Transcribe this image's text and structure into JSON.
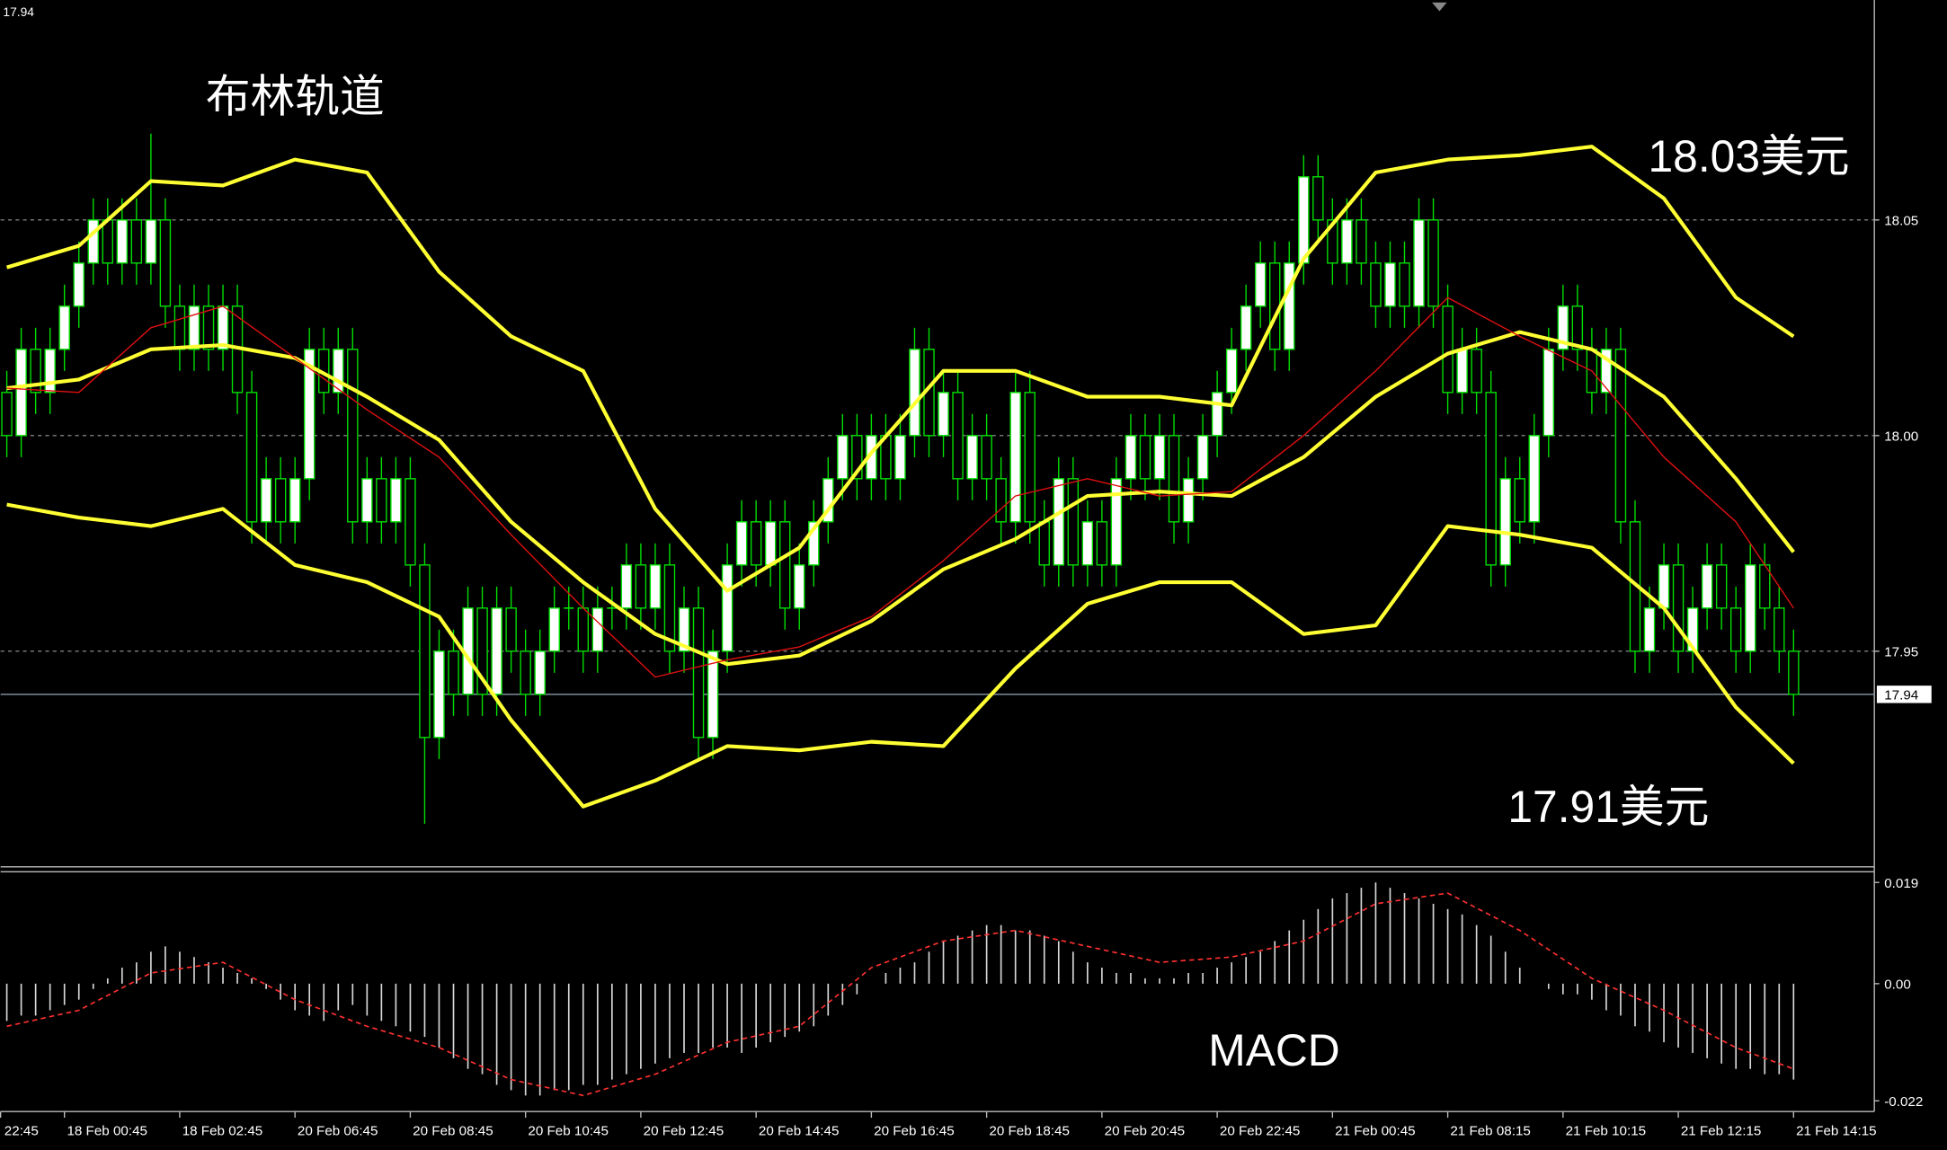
{
  "chart_data": {
    "type": "candlestick",
    "top_left_label": 17.94,
    "annotations": [
      "布林轨道",
      "18.03美元",
      "17.91美元"
    ],
    "time_labels": [
      "22:45",
      "18 Feb 00:45",
      "18 Feb 02:45",
      "20 Feb 06:45",
      "20 Feb 08:45",
      "20 Feb 10:45",
      "20 Feb 12:45",
      "20 Feb 14:45",
      "20 Feb 16:45",
      "20 Feb 18:45",
      "20 Feb 20:45",
      "20 Feb 22:45",
      "21 Feb 00:45",
      "21 Feb 08:15",
      "21 Feb 10:15",
      "21 Feb 12:15",
      "21 Feb 14:15"
    ],
    "ylim": [
      17.9,
      18.101
    ],
    "yticks": [
      18.05,
      {
        "value": 18,
        "label": "18.00"
      },
      17.95
    ],
    "grid": true,
    "current_price": 17.94,
    "candle_colors": {
      "up": "#ffffff",
      "down": "#000000",
      "outline": "#00e000"
    },
    "candles": {
      "open": [
        18.01,
        18.0,
        18.02,
        18.01,
        18.02,
        18.03,
        18.04,
        18.05,
        18.04,
        18.05,
        18.04,
        18.05,
        18.03,
        18.02,
        18.03,
        18.02,
        18.03,
        18.01,
        17.98,
        17.99,
        17.98,
        17.99,
        18.02,
        18.01,
        18.02,
        17.98,
        17.99,
        17.98,
        17.99,
        17.97,
        17.93,
        17.95,
        17.94,
        17.96,
        17.94,
        17.96,
        17.95,
        17.94,
        17.95,
        17.96,
        17.96,
        17.95,
        17.96,
        17.96,
        17.97,
        17.96,
        17.97,
        17.95,
        17.96,
        17.93,
        17.95,
        17.97,
        17.98,
        17.97,
        17.98,
        17.96,
        17.97,
        17.98,
        17.99,
        18.0,
        17.99,
        18.0,
        17.99,
        18.0,
        18.02,
        18.0,
        18.01,
        17.99,
        18.0,
        17.99,
        17.98,
        18.01,
        17.98,
        17.97,
        17.99,
        17.97,
        17.98,
        17.97,
        17.99,
        18.0,
        17.99,
        18.0,
        17.98,
        17.99,
        18.0,
        18.01,
        18.02,
        18.03,
        18.04,
        18.02,
        18.04,
        18.06,
        18.05,
        18.04,
        18.05,
        18.04,
        18.03,
        18.04,
        18.03,
        18.05,
        18.03,
        18.01,
        18.02,
        18.01,
        17.97,
        17.99,
        17.98,
        18.0,
        18.02,
        18.03,
        18.02,
        18.01,
        18.02,
        17.98,
        17.95,
        17.96,
        17.97,
        17.95,
        17.96,
        17.97,
        17.96,
        17.95,
        17.97,
        17.96,
        17.95
      ],
      "high": [
        18.015,
        18.025,
        18.025,
        18.025,
        18.035,
        18.045,
        18.055,
        18.055,
        18.055,
        18.055,
        18.07,
        18.055,
        18.035,
        18.035,
        18.035,
        18.035,
        18.035,
        18.015,
        17.995,
        17.995,
        17.995,
        18.025,
        18.025,
        18.025,
        18.025,
        17.995,
        17.995,
        17.995,
        17.995,
        17.975,
        17.955,
        17.955,
        17.965,
        17.965,
        17.965,
        17.965,
        17.955,
        17.955,
        17.965,
        17.965,
        17.965,
        17.965,
        17.965,
        17.975,
        17.975,
        17.975,
        17.975,
        17.965,
        17.965,
        17.955,
        17.975,
        17.985,
        17.985,
        17.985,
        17.985,
        17.975,
        17.985,
        17.995,
        18.005,
        18.005,
        18.005,
        18.005,
        18.005,
        18.025,
        18.025,
        18.015,
        18.015,
        18.005,
        18.005,
        17.995,
        18.015,
        18.015,
        17.985,
        17.995,
        17.995,
        17.985,
        17.985,
        17.995,
        18.005,
        18.005,
        18.005,
        18.005,
        17.995,
        18.005,
        18.015,
        18.025,
        18.035,
        18.045,
        18.045,
        18.045,
        18.065,
        18.065,
        18.055,
        18.055,
        18.055,
        18.045,
        18.045,
        18.045,
        18.055,
        18.055,
        18.035,
        18.025,
        18.025,
        18.015,
        17.995,
        17.995,
        18.005,
        18.025,
        18.035,
        18.035,
        18.025,
        18.025,
        18.025,
        17.985,
        17.965,
        17.975,
        17.975,
        17.965,
        17.975,
        17.975,
        17.965,
        17.975,
        17.975,
        17.965,
        17.955
      ],
      "low": [
        17.995,
        17.995,
        18.005,
        18.005,
        18.015,
        18.025,
        18.035,
        18.035,
        18.035,
        18.035,
        18.035,
        18.025,
        18.015,
        18.015,
        18.015,
        18.015,
        18.005,
        17.975,
        17.975,
        17.975,
        17.975,
        17.985,
        18.005,
        18.005,
        17.975,
        17.975,
        17.975,
        17.975,
        17.965,
        17.91,
        17.925,
        17.935,
        17.935,
        17.935,
        17.935,
        17.945,
        17.935,
        17.935,
        17.945,
        17.955,
        17.945,
        17.945,
        17.955,
        17.955,
        17.955,
        17.955,
        17.945,
        17.945,
        17.925,
        17.925,
        17.945,
        17.965,
        17.965,
        17.965,
        17.955,
        17.955,
        17.965,
        17.975,
        17.985,
        17.985,
        17.985,
        17.985,
        17.985,
        17.995,
        17.995,
        17.995,
        17.985,
        17.985,
        17.985,
        17.975,
        17.975,
        17.975,
        17.965,
        17.965,
        17.965,
        17.965,
        17.965,
        17.965,
        17.985,
        17.985,
        17.985,
        17.975,
        17.975,
        17.985,
        17.995,
        18.005,
        18.015,
        18.025,
        18.015,
        18.015,
        18.035,
        18.045,
        18.035,
        18.035,
        18.035,
        18.025,
        18.025,
        18.025,
        18.025,
        18.025,
        18.005,
        18.005,
        18.005,
        17.965,
        17.965,
        17.975,
        17.975,
        17.995,
        18.015,
        18.015,
        18.005,
        18.005,
        17.975,
        17.945,
        17.945,
        17.955,
        17.945,
        17.945,
        17.955,
        17.955,
        17.945,
        17.945,
        17.955,
        17.945,
        17.935
      ],
      "close": [
        18.0,
        18.02,
        18.01,
        18.02,
        18.03,
        18.04,
        18.05,
        18.04,
        18.05,
        18.04,
        18.05,
        18.03,
        18.02,
        18.03,
        18.02,
        18.03,
        18.01,
        17.98,
        17.99,
        17.98,
        17.99,
        18.02,
        18.01,
        18.02,
        17.98,
        17.99,
        17.98,
        17.99,
        17.97,
        17.93,
        17.95,
        17.94,
        17.96,
        17.94,
        17.96,
        17.95,
        17.94,
        17.95,
        17.96,
        17.96,
        17.95,
        17.96,
        17.96,
        17.97,
        17.96,
        17.97,
        17.95,
        17.96,
        17.93,
        17.95,
        17.97,
        17.98,
        17.97,
        17.98,
        17.96,
        17.97,
        17.98,
        17.99,
        18.0,
        17.99,
        18.0,
        17.99,
        18.0,
        18.02,
        18.0,
        18.01,
        17.99,
        18.0,
        17.99,
        17.98,
        18.01,
        17.98,
        17.97,
        17.99,
        17.97,
        17.98,
        17.97,
        17.99,
        18.0,
        17.99,
        18.0,
        17.98,
        17.99,
        18.0,
        18.01,
        18.02,
        18.03,
        18.04,
        18.02,
        18.04,
        18.06,
        18.05,
        18.04,
        18.05,
        18.04,
        18.03,
        18.04,
        18.03,
        18.05,
        18.03,
        18.01,
        18.02,
        18.01,
        17.97,
        17.99,
        17.98,
        18.0,
        18.02,
        18.03,
        18.02,
        18.01,
        18.02,
        17.98,
        17.95,
        17.96,
        17.97,
        17.95,
        17.96,
        17.97,
        17.96,
        17.95,
        17.97,
        17.96,
        17.95,
        17.94
      ]
    },
    "overlays": {
      "x": [
        0,
        5,
        10,
        15,
        20,
        25,
        30,
        35,
        40,
        45,
        50,
        55,
        60,
        65,
        70,
        75,
        80,
        85,
        90,
        95,
        100,
        105,
        110,
        115,
        120,
        124
      ],
      "series": [
        {
          "color": "#ffff33",
          "width": 3,
          "values": [
            18.039,
            18.044,
            18.059,
            18.058,
            18.064,
            18.061,
            18.038,
            18.023,
            18.015,
            17.983,
            17.964,
            17.974,
            17.996,
            18.015,
            18.015,
            18.009,
            18.009,
            18.007,
            18.041,
            18.061,
            18.064,
            18.065,
            18.067,
            18.055,
            18.032,
            18.023
          ]
        },
        {
          "color": "#ffff33",
          "width": 3,
          "values": [
            18.011,
            18.013,
            18.02,
            18.021,
            18.018,
            18.009,
            17.999,
            17.98,
            17.966,
            17.954,
            17.947,
            17.949,
            17.957,
            17.969,
            17.976,
            17.986,
            17.987,
            17.986,
            17.995,
            18.009,
            18.019,
            18.024,
            18.02,
            18.009,
            17.99,
            17.973
          ]
        },
        {
          "color": "#ffff33",
          "width": 3,
          "values": [
            17.984,
            17.981,
            17.979,
            17.983,
            17.97,
            17.966,
            17.958,
            17.934,
            17.914,
            17.92,
            17.928,
            17.927,
            17.929,
            17.928,
            17.946,
            17.961,
            17.966,
            17.966,
            17.954,
            17.956,
            17.979,
            17.977,
            17.974,
            17.96,
            17.937,
            17.924
          ]
        },
        {
          "color": "#e01010",
          "width": 1,
          "values": [
            18.011,
            18.01,
            18.025,
            18.03,
            18.018,
            18.006,
            17.995,
            17.977,
            17.96,
            17.944,
            17.948,
            17.951,
            17.958,
            17.971,
            17.986,
            17.99,
            17.986,
            17.987,
            18.0,
            18.015,
            18.032,
            18.023,
            18.015,
            17.995,
            17.98,
            17.96
          ]
        }
      ]
    },
    "macd": {
      "label": "MACD",
      "ylim": [
        -0.024,
        0.021
      ],
      "yticks": [
        0.019,
        {
          "value": 0,
          "label": "0.00"
        },
        -0.022
      ],
      "histogram_color": "#d8d8d8",
      "histogram": [
        -0.007,
        -0.006,
        -0.006,
        -0.005,
        -0.004,
        -0.003,
        -0.001,
        0.001,
        0.003,
        0.004,
        0.006,
        0.007,
        0.006,
        0.005,
        0.004,
        0.003,
        0.002,
        0.001,
        -0.001,
        -0.003,
        -0.005,
        -0.006,
        -0.007,
        -0.005,
        -0.004,
        -0.006,
        -0.007,
        -0.008,
        -0.009,
        -0.01,
        -0.012,
        -0.014,
        -0.016,
        -0.017,
        -0.019,
        -0.02,
        -0.021,
        -0.021,
        -0.02,
        -0.02,
        -0.019,
        -0.019,
        -0.018,
        -0.017,
        -0.016,
        -0.015,
        -0.014,
        -0.013,
        -0.013,
        -0.012,
        -0.012,
        -0.013,
        -0.012,
        -0.011,
        -0.01,
        -0.009,
        -0.008,
        -0.006,
        -0.004,
        -0.002,
        0,
        0.002,
        0.003,
        0.004,
        0.006,
        0.008,
        0.009,
        0.01,
        0.011,
        0.011,
        0.01,
        0.01,
        0.009,
        0.008,
        0.006,
        0.004,
        0.003,
        0.002,
        0.002,
        0.001,
        0.001,
        0.001,
        0.002,
        0.002,
        0.003,
        0.004,
        0.005,
        0.006,
        0.008,
        0.01,
        0.012,
        0.014,
        0.016,
        0.017,
        0.018,
        0.019,
        0.018,
        0.017,
        0.016,
        0.015,
        0.014,
        0.013,
        0.011,
        0.009,
        0.006,
        0.003,
        0,
        -0.001,
        -0.002,
        -0.002,
        -0.003,
        -0.005,
        -0.006,
        -0.008,
        -0.009,
        -0.011,
        -0.012,
        -0.013,
        -0.014,
        -0.015,
        -0.016,
        -0.016,
        -0.017,
        -0.017,
        -0.018
      ],
      "signal": {
        "color": "#ff3030",
        "values": [
          -0.008,
          -0.005,
          0.002,
          0.004,
          -0.003,
          -0.008,
          -0.012,
          -0.018,
          -0.021,
          -0.017,
          -0.011,
          -0.008,
          0.003,
          0.008,
          0.01,
          0.007,
          0.004,
          0.005,
          0.008,
          0.015,
          0.017,
          0.01,
          0.001,
          -0.005,
          -0.012,
          -0.016
        ]
      }
    }
  }
}
